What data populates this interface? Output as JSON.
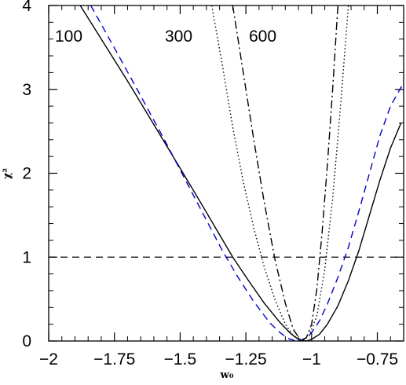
{
  "chart_data": {
    "type": "line",
    "xlabel": "w₀",
    "ylabel": "χ²",
    "xlim": [
      -2.0,
      -0.65
    ],
    "ylim": [
      0,
      4
    ],
    "grid": false,
    "x_ticks": [
      -2,
      -1.75,
      -1.5,
      -1.25,
      -1,
      -0.75
    ],
    "x_tick_labels": [
      "−2",
      "−1.75",
      "−1.5",
      "−1.25",
      "−1",
      "−0.75"
    ],
    "y_ticks": [
      0,
      1,
      2,
      3,
      4
    ],
    "y_tick_labels": [
      "0",
      "1",
      "2",
      "3",
      "4"
    ],
    "reference_line": {
      "y": 1,
      "style": "dashed",
      "color": "#000000"
    },
    "series": [
      {
        "curve_label": "100",
        "style": "solid",
        "color": "#000000",
        "x": [
          -1.88,
          -1.8,
          -1.7,
          -1.6,
          -1.5,
          -1.42,
          -1.36,
          -1.3,
          -1.24,
          -1.18,
          -1.12,
          -1.08,
          -1.05,
          -1.02,
          -1.0,
          -0.97,
          -0.94,
          -0.9,
          -0.86,
          -0.82,
          -0.78,
          -0.74,
          -0.7,
          -0.66
        ],
        "y": [
          4.0,
          3.6,
          3.1,
          2.58,
          2.06,
          1.64,
          1.32,
          1.0,
          0.72,
          0.45,
          0.22,
          0.09,
          0.02,
          0.0,
          0.02,
          0.08,
          0.2,
          0.42,
          0.72,
          1.08,
          1.5,
          1.92,
          2.3,
          2.6
        ]
      },
      {
        "curve_label": "",
        "style": "dashed",
        "color": "#0000cc",
        "x": [
          -1.84,
          -1.76,
          -1.66,
          -1.56,
          -1.48,
          -1.42,
          -1.38,
          -1.34,
          -1.28,
          -1.22,
          -1.16,
          -1.12,
          -1.09,
          -1.06,
          -1.04,
          -1.02,
          -1.0,
          -0.97,
          -0.94,
          -0.9,
          -0.86,
          -0.82,
          -0.78,
          -0.74,
          -0.7,
          -0.65
        ],
        "y": [
          4.0,
          3.55,
          2.98,
          2.4,
          1.92,
          1.56,
          1.32,
          1.08,
          0.76,
          0.47,
          0.22,
          0.1,
          0.03,
          0.0,
          0.01,
          0.04,
          0.1,
          0.24,
          0.44,
          0.76,
          1.12,
          1.55,
          2.0,
          2.45,
          2.8,
          3.08
        ]
      },
      {
        "curve_label": "300",
        "style": "dotted",
        "color": "#000000",
        "x": [
          -1.38,
          -1.34,
          -1.3,
          -1.26,
          -1.22,
          -1.18,
          -1.14,
          -1.1,
          -1.07,
          -1.04,
          -1.01,
          -0.98,
          -0.95,
          -0.92,
          -0.89,
          -0.86
        ],
        "y": [
          4.0,
          3.3,
          2.55,
          1.9,
          1.35,
          0.88,
          0.5,
          0.2,
          0.06,
          0.0,
          0.06,
          0.3,
          0.85,
          1.7,
          2.8,
          4.0
        ]
      },
      {
        "curve_label": "600",
        "style": "dashdot",
        "color": "#000000",
        "x": [
          -1.3,
          -1.26,
          -1.22,
          -1.18,
          -1.14,
          -1.1,
          -1.07,
          -1.04,
          -1.02,
          -1.0,
          -0.98,
          -0.96,
          -0.94,
          -0.92,
          -0.9
        ],
        "y": [
          4.0,
          3.2,
          2.4,
          1.65,
          0.98,
          0.45,
          0.14,
          0.0,
          0.04,
          0.2,
          0.62,
          1.3,
          2.1,
          3.0,
          4.0
        ]
      }
    ]
  }
}
